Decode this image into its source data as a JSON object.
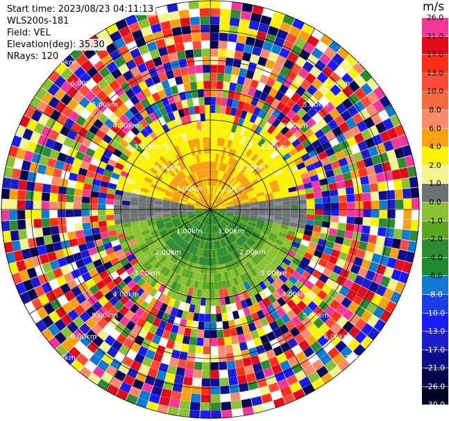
{
  "header": {
    "start_time": "Start time: 2023/08/23 04:11:13",
    "instrument": "WLS200s-181",
    "field": "Field: VEL",
    "elevation": "Elevation(deg): 35.30",
    "nrays": "NRays: 120"
  },
  "colorbar": {
    "unit": "m/s",
    "colors": [
      "#f4359a",
      "#e30b1a",
      "#ff2f17",
      "#ff4a36",
      "#f46b3e",
      "#fa8a6a",
      "#f9a010",
      "#fcf200",
      "#f3f58c",
      "#6e7273",
      "#8ac031",
      "#5aa822",
      "#2f8b32",
      "#1e8a2e",
      "#0f7ad2",
      "#1a3ee8",
      "#1a1aff",
      "#1c1cc8",
      "#0d0d8e",
      "#06064e",
      "#020226"
    ],
    "labels": [
      "26.0",
      "21.0",
      "17.0",
      "13.0",
      "10.0",
      "8.0",
      "6.0",
      "4.0",
      "2.0",
      "1.0",
      "0.0",
      "-1.0",
      "-2.0",
      "-4.0",
      "-6.0",
      "-8.0",
      "-10.0",
      "-13.0",
      "-17.0",
      "-21.0",
      "-26.0"
    ],
    "bottom_label": "-30.0"
  },
  "range_rings": {
    "labels": [
      "1.00km",
      "2.00km",
      "3.00km",
      "4.00km",
      "5.00km",
      "6.00km",
      "7.00km"
    ]
  }
}
